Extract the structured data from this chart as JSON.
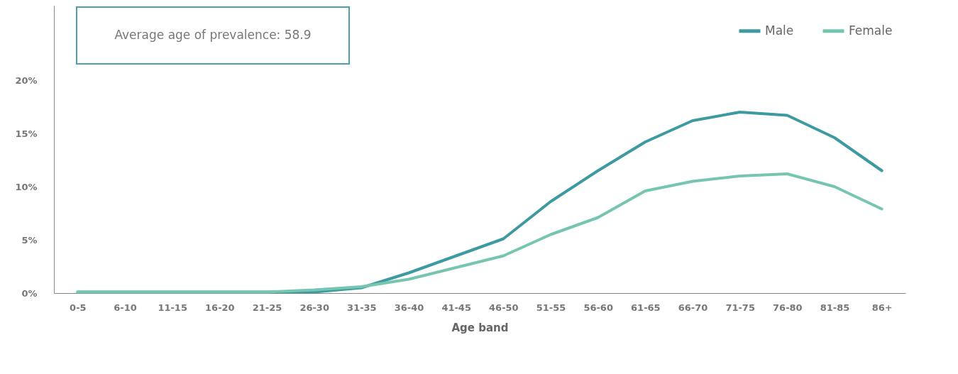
{
  "chart_data": {
    "type": "line",
    "xlabel": "Age band",
    "categories": [
      "0-5",
      "6-10",
      "11-15",
      "16-20",
      "21-25",
      "26-30",
      "31-35",
      "36-40",
      "41-45",
      "46-50",
      "51-55",
      "56-60",
      "61-65",
      "66-70",
      "71-75",
      "76-80",
      "81-85",
      "86+"
    ],
    "series": [
      {
        "name": "Male",
        "color": "#3d9aa1",
        "values": [
          0.1,
          0.1,
          0.1,
          0.1,
          0.1,
          0.1,
          0.5,
          1.9,
          3.5,
          5.1,
          8.6,
          11.5,
          14.2,
          16.2,
          17.0,
          16.7,
          14.6,
          11.5
        ]
      },
      {
        "name": "Female",
        "color": "#76c5b0",
        "values": [
          0.1,
          0.1,
          0.1,
          0.1,
          0.1,
          0.3,
          0.6,
          1.3,
          2.4,
          3.5,
          5.5,
          7.1,
          9.6,
          10.5,
          11.0,
          11.2,
          10.0,
          7.9
        ]
      }
    ],
    "ylim": [
      0,
      27
    ],
    "yticks": [
      {
        "value": 0,
        "label": "0%"
      },
      {
        "value": 5,
        "label": "5%"
      },
      {
        "value": 10,
        "label": "10%"
      },
      {
        "value": 15,
        "label": "15%"
      },
      {
        "value": 20,
        "label": "20%"
      }
    ],
    "grid": false,
    "legend": "top right",
    "marker": "none",
    "line_style": "solid",
    "annotations": [
      "Average age of prevalence: 58.9"
    ]
  }
}
